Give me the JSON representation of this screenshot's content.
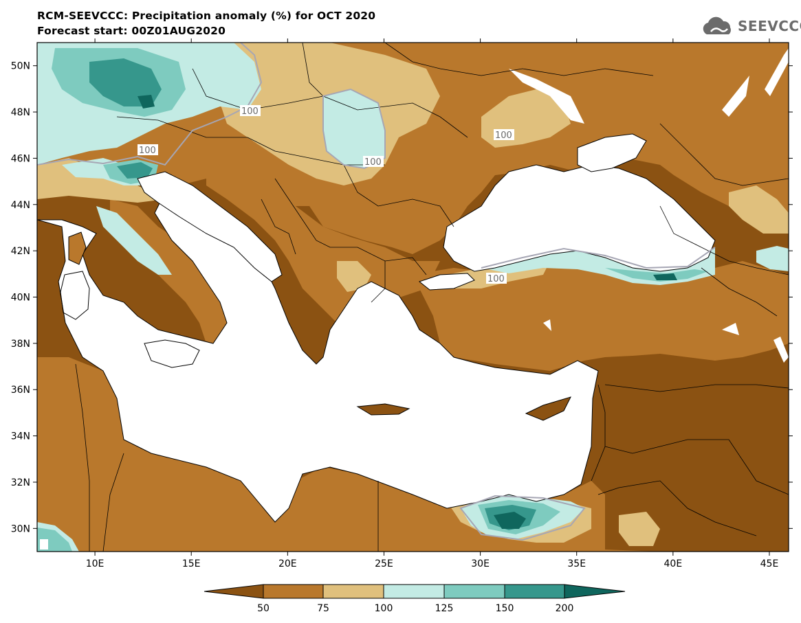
{
  "header": {
    "title": "RCM-SEEVCCC: Precipitation anomaly (%) for OCT 2020",
    "subtitle": "Forecast start: 00Z01AUG2020"
  },
  "logo": {
    "text": "SEEVCCC",
    "icon": "cloud-icon"
  },
  "chart_data": {
    "type": "heatmap",
    "variable": "Precipitation anomaly (%)",
    "lat_ticks": [
      "50N",
      "48N",
      "46N",
      "44N",
      "42N",
      "40N",
      "38N",
      "36N",
      "34N",
      "32N",
      "30N"
    ],
    "lat_values": [
      50,
      48,
      46,
      44,
      42,
      40,
      38,
      36,
      34,
      32,
      30
    ],
    "lon_ticks": [
      "10E",
      "15E",
      "20E",
      "25E",
      "30E",
      "35E",
      "40E",
      "45E"
    ],
    "lon_values": [
      10,
      15,
      20,
      25,
      30,
      35,
      40,
      45
    ],
    "lat_range": [
      29.0,
      51.0
    ],
    "lon_range": [
      7.0,
      46.0
    ],
    "colorbar": {
      "labels": [
        "50",
        "75",
        "100",
        "125",
        "150",
        "200"
      ],
      "bins": [
        {
          "range": "<50",
          "color": "#8b5212"
        },
        {
          "range": "50-75",
          "color": "#b9782c"
        },
        {
          "range": "75-100",
          "color": "#e0c07d"
        },
        {
          "range": "100-125",
          "color": "#c3ebe4"
        },
        {
          "range": "125-150",
          "color": "#7ecbbf"
        },
        {
          "range": "150-200",
          "color": "#36978c"
        },
        {
          "range": ">200",
          "color": "#0f665d"
        }
      ]
    },
    "contour_labels": [
      "100",
      "100",
      "100",
      "100",
      "100"
    ]
  }
}
